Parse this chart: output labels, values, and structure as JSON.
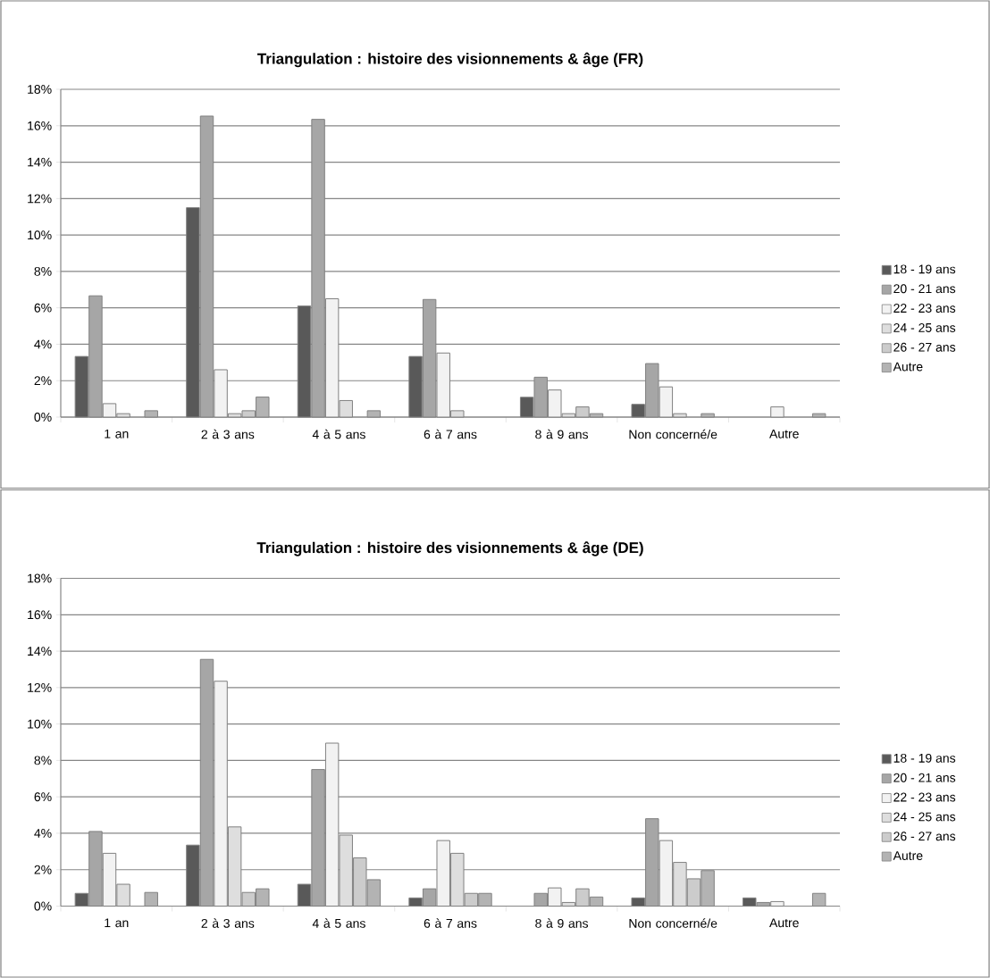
{
  "chart_data": [
    {
      "type": "bar",
      "title": "Triangulation : histoire des visionnements & âge (FR)",
      "categories": [
        "1 an",
        "2 à 3 ans",
        "4 à 5 ans",
        "6 à 7 ans",
        "8 à 9 ans",
        "Non concerné/e",
        "Autre"
      ],
      "series": [
        {
          "name": "18 - 19 ans",
          "color": "#595959",
          "values": [
            3.33,
            11.5,
            6.1,
            3.33,
            1.09,
            0.7,
            null
          ]
        },
        {
          "name": "20 - 21 ans",
          "color": "#a6a6a6",
          "values": [
            6.66,
            16.53,
            16.35,
            6.46,
            2.19,
            2.94,
            null
          ]
        },
        {
          "name": "22 - 23 ans",
          "color": "#f2f2f2",
          "values": [
            0.74,
            2.6,
            6.5,
            3.52,
            1.49,
            1.66,
            0.56
          ]
        },
        {
          "name": "24 - 25 ans",
          "color": "#dedede",
          "values": [
            0.19,
            0.19,
            0.91,
            0.35,
            0.19,
            0.19,
            null
          ]
        },
        {
          "name": "26 - 27 ans",
          "color": "#cccccc",
          "values": [
            null,
            0.35,
            null,
            null,
            0.56,
            null,
            null
          ]
        },
        {
          "name": "Autre",
          "color": "#b3b3b3",
          "values": [
            0.35,
            1.1,
            0.35,
            null,
            0.19,
            0.19,
            0.19
          ]
        }
      ],
      "ylim": [
        0,
        18
      ],
      "yticks": [
        {
          "value": 0,
          "label": "0%"
        },
        {
          "value": 2,
          "label": "2%"
        },
        {
          "value": 4,
          "label": "4%"
        },
        {
          "value": 6,
          "label": "6%"
        },
        {
          "value": 8,
          "label": "8%"
        },
        {
          "value": 10,
          "label": "10%"
        },
        {
          "value": 12,
          "label": "12%"
        },
        {
          "value": 14,
          "label": "14%"
        },
        {
          "value": 16,
          "label": "16%"
        },
        {
          "value": 18,
          "label": "18%"
        }
      ],
      "grid": "y",
      "legend": "right"
    },
    {
      "type": "bar",
      "title": "Triangulation : histoire des visionnements & âge (DE)",
      "categories": [
        "1 an",
        "2 à 3 ans",
        "4 à 5 ans",
        "6 à 7 ans",
        "8 à 9 ans",
        "Non concerné/e",
        "Autre"
      ],
      "series": [
        {
          "name": "18 - 19 ans",
          "color": "#595959",
          "values": [
            0.7,
            3.35,
            1.2,
            0.45,
            null,
            0.45,
            0.45
          ]
        },
        {
          "name": "20 - 21 ans",
          "color": "#a6a6a6",
          "values": [
            4.1,
            13.55,
            7.5,
            0.95,
            0.7,
            4.8,
            0.2
          ]
        },
        {
          "name": "22 - 23 ans",
          "color": "#f2f2f2",
          "values": [
            2.9,
            12.35,
            8.95,
            3.6,
            1.0,
            3.6,
            0.25
          ]
        },
        {
          "name": "24 - 25 ans",
          "color": "#dedede",
          "values": [
            1.2,
            4.35,
            3.9,
            2.9,
            0.2,
            2.4,
            null
          ]
        },
        {
          "name": "26 - 27 ans",
          "color": "#cccccc",
          "values": [
            null,
            0.75,
            2.65,
            0.7,
            0.95,
            1.5,
            null
          ]
        },
        {
          "name": "Autre",
          "color": "#b3b3b3",
          "values": [
            0.75,
            0.95,
            1.45,
            0.7,
            0.5,
            1.95,
            0.7
          ]
        }
      ],
      "ylim": [
        0,
        18
      ],
      "yticks": [
        {
          "value": 0,
          "label": "0%"
        },
        {
          "value": 2,
          "label": "2%"
        },
        {
          "value": 4,
          "label": "4%"
        },
        {
          "value": 6,
          "label": "6%"
        },
        {
          "value": 8,
          "label": "8%"
        },
        {
          "value": 10,
          "label": "10%"
        },
        {
          "value": 12,
          "label": "12%"
        },
        {
          "value": 14,
          "label": "14%"
        },
        {
          "value": 16,
          "label": "16%"
        },
        {
          "value": 18,
          "label": "18%"
        }
      ],
      "grid": "y",
      "legend": "right"
    }
  ]
}
